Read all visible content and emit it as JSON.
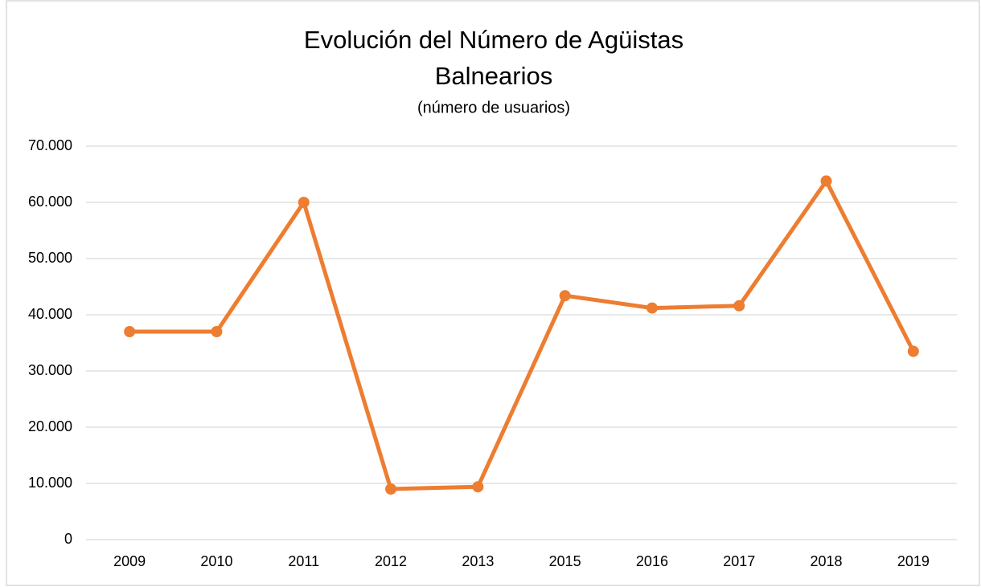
{
  "chart_data": {
    "type": "line",
    "title": [
      "Evolución del Número de Agüistas",
      "Balnearios"
    ],
    "subtitle": "(número de usuarios)",
    "categories": [
      "2009",
      "2010",
      "2011",
      "2012",
      "2013",
      "2015",
      "2016",
      "2017",
      "2018",
      "2019"
    ],
    "values": [
      37000,
      37000,
      60000,
      9000,
      9400,
      43400,
      41200,
      41600,
      63800,
      33500
    ],
    "color": "#ed7d31",
    "ylim": [
      0,
      70000
    ],
    "yticks": [
      0,
      {
        "value": 10000,
        "label": "10.000"
      },
      {
        "value": 20000,
        "label": "20.000"
      },
      {
        "value": 30000,
        "label": "30.000"
      },
      {
        "value": 40000,
        "label": "40.000"
      },
      {
        "value": 50000,
        "label": "50.000"
      },
      {
        "value": 60000,
        "label": "60.000"
      },
      {
        "value": 70000,
        "label": "70.000"
      }
    ],
    "grid": true
  }
}
